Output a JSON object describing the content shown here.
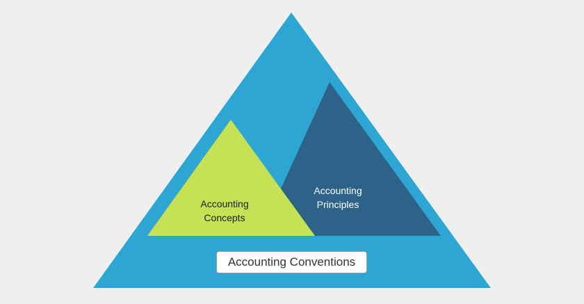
{
  "diagram": {
    "outer": {
      "color": "#2ea6d3"
    },
    "concepts": {
      "color": "#c5e155",
      "line1": "Accounting",
      "line2": "Concepts"
    },
    "principles": {
      "color": "#2e6389",
      "line1": "Accounting",
      "line2": "Principles"
    },
    "conventions": {
      "label": "Accounting Conventions"
    }
  }
}
